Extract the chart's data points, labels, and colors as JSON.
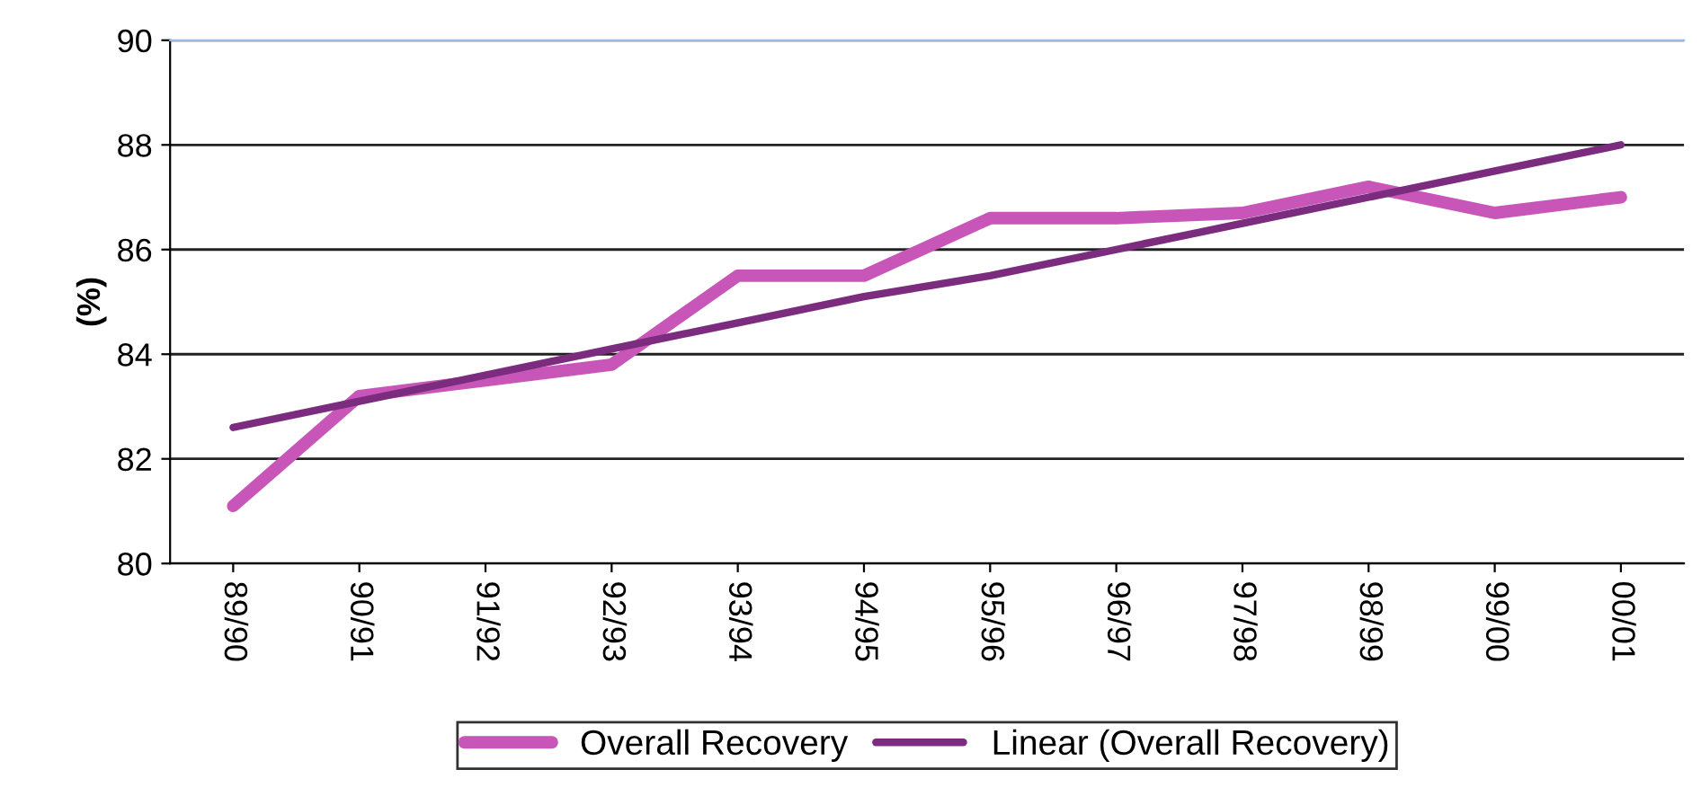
{
  "chart_data": {
    "type": "line",
    "ylabel": "(%)",
    "categories": [
      "89/90",
      "90/91",
      "91/92",
      "92/93",
      "93/94",
      "94/95",
      "95/96",
      "96/97",
      "97/98",
      "98/99",
      "99/00",
      "00/01"
    ],
    "series": [
      {
        "name": "Overall Recovery",
        "color": "#c855b8",
        "values": [
          81.1,
          83.2,
          83.5,
          83.8,
          85.5,
          85.5,
          86.6,
          86.6,
          86.7,
          87.2,
          86.7,
          87.0
        ]
      },
      {
        "name": "Linear (Overall Recovery)",
        "color": "#7b2c7e",
        "values": [
          82.6,
          83.1,
          83.6,
          84.1,
          84.6,
          85.1,
          85.5,
          86.0,
          86.5,
          87.0,
          87.5,
          88.0
        ]
      }
    ],
    "ylim": [
      80,
      90
    ],
    "yticks": [
      80,
      82,
      84,
      86,
      88,
      90
    ],
    "grid": "y",
    "legend": "bottom",
    "marker": "none",
    "line_style": "solid"
  }
}
